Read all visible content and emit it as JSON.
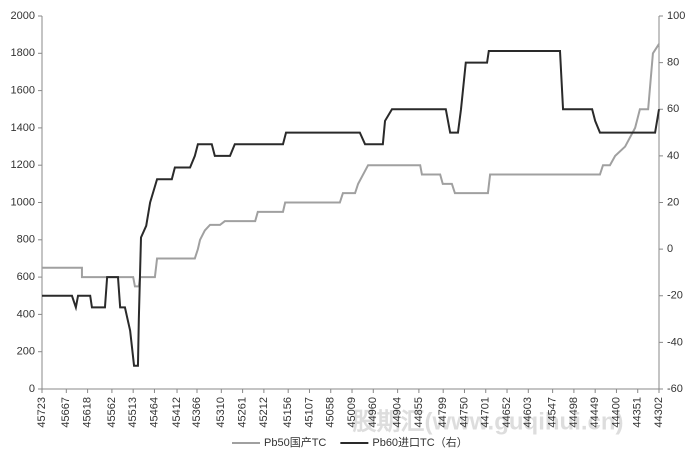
{
  "chart_data": {
    "type": "line",
    "watermark": "股期汇(www.guqihui.cn)",
    "xlim": [
      45723,
      44302
    ],
    "xticks": [
      45723,
      45667,
      45618,
      45562,
      45513,
      45464,
      45412,
      45366,
      45310,
      45261,
      45212,
      45156,
      45107,
      45058,
      45009,
      44960,
      44904,
      44855,
      44799,
      44750,
      44701,
      44652,
      44603,
      44547,
      44498,
      44449,
      44400,
      44351,
      44302
    ],
    "ylim": [
      0,
      2000
    ],
    "yticks": [
      0,
      200,
      400,
      600,
      800,
      1000,
      1200,
      1400,
      1600,
      1800,
      2000
    ],
    "y2lim": [
      -60,
      100
    ],
    "y2ticks": [
      -60,
      -40,
      -20,
      0,
      20,
      40,
      60,
      80,
      100
    ],
    "legend": "bottom",
    "series": [
      {
        "name": "Pb50国产TC",
        "color": "#a0a0a0",
        "x": [
          45723,
          45631,
          45631,
          45513,
          45509,
          45500,
          45497,
          45463,
          45458,
          45371,
          45364,
          45359,
          45348,
          45336,
          45313,
          45302,
          45232,
          45226,
          45168,
          45163,
          45037,
          45030,
          45002,
          44995,
          44972,
          44852,
          44848,
          44806,
          44800,
          44779,
          44772,
          44696,
          44691,
          44438,
          44431,
          44415,
          44403,
          44380,
          44357,
          44346,
          44327,
          44316,
          44302
        ],
        "values": [
          650,
          650,
          600,
          600,
          550,
          550,
          600,
          600,
          700,
          700,
          750,
          800,
          850,
          880,
          880,
          900,
          900,
          950,
          950,
          1000,
          1000,
          1050,
          1050,
          1100,
          1200,
          1200,
          1150,
          1150,
          1100,
          1100,
          1050,
          1050,
          1150,
          1150,
          1200,
          1200,
          1250,
          1300,
          1400,
          1500,
          1500,
          1800,
          1850
        ]
      },
      {
        "name": "Pb60进口TC（右）",
        "color": "#2a2a2a",
        "axis": "y2",
        "x": [
          45723,
          45654,
          45645,
          45640,
          45612,
          45608,
          45578,
          45573,
          45548,
          45543,
          45532,
          45520,
          45511,
          45502,
          45500,
          45495,
          45483,
          45474,
          45458,
          45424,
          45417,
          45382,
          45371,
          45364,
          45332,
          45325,
          45290,
          45279,
          45168,
          45161,
          44991,
          44979,
          44938,
          44933,
          44917,
          44793,
          44783,
          44765,
          44758,
          44747,
          44698,
          44694,
          44530,
          44523,
          44456,
          44449,
          44438,
          44311,
          44302
        ],
        "values": [
          -20,
          -20,
          -25,
          -20,
          -20,
          -25,
          -25,
          -12,
          -12,
          -25,
          -25,
          -35,
          -50,
          -50,
          -30,
          5,
          10,
          20,
          30,
          30,
          35,
          35,
          40,
          45,
          45,
          40,
          40,
          45,
          45,
          50,
          50,
          45,
          45,
          55,
          60,
          60,
          50,
          50,
          60,
          80,
          80,
          85,
          85,
          60,
          60,
          55,
          50,
          50,
          60
        ]
      }
    ]
  }
}
